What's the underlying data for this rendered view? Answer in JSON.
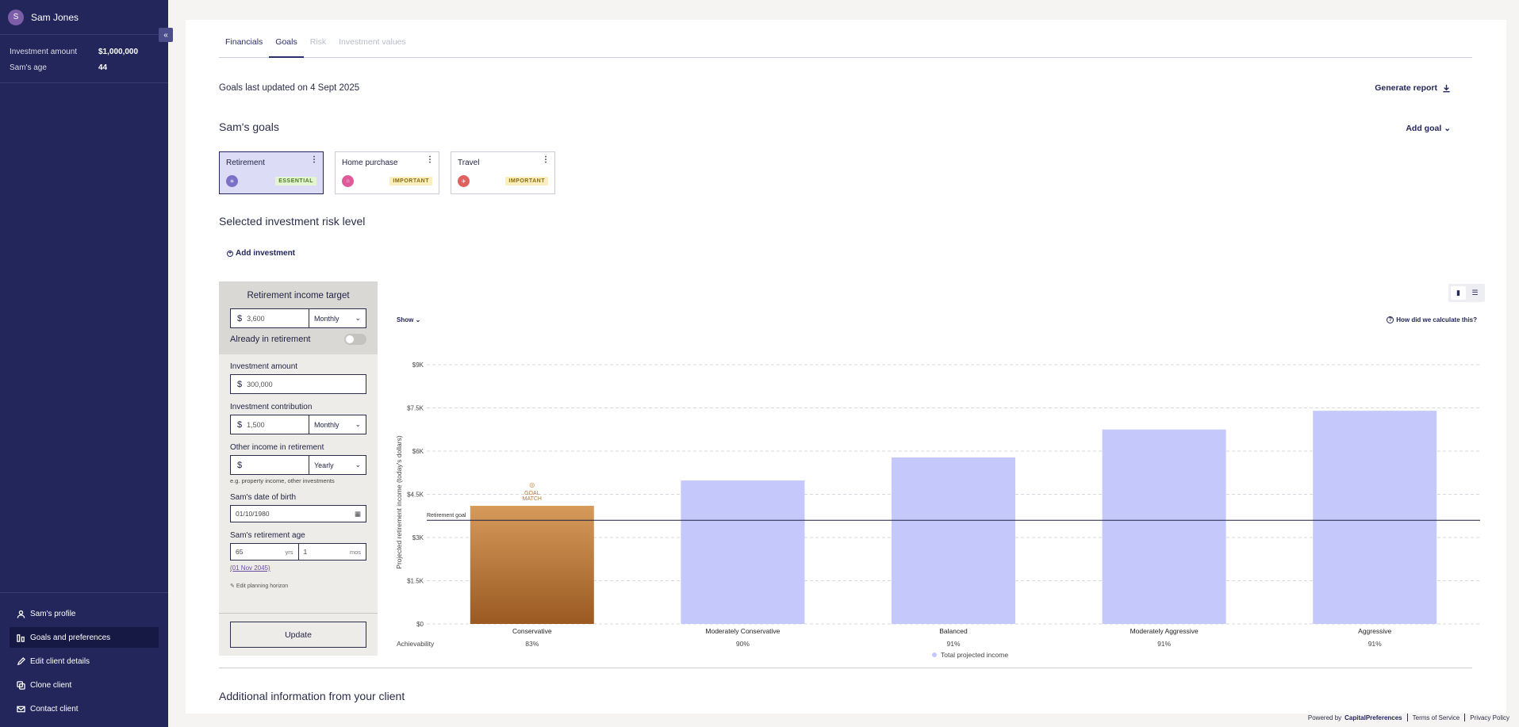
{
  "user": {
    "initial": "S",
    "name": "Sam Jones"
  },
  "sidebar": {
    "collapse_icon": "«",
    "info": [
      {
        "label": "Investment amount",
        "value": "$1,000,000"
      },
      {
        "label": "Sam's age",
        "value": "44"
      }
    ],
    "nav": [
      {
        "label": "Sam's profile",
        "icon": "person-icon",
        "active": false
      },
      {
        "label": "Goals and preferences",
        "icon": "chart-icon",
        "active": true
      },
      {
        "label": "Edit client details",
        "icon": "pencil-icon",
        "active": false
      },
      {
        "label": "Clone client",
        "icon": "copy-icon",
        "active": false
      },
      {
        "label": "Contact client",
        "icon": "mail-icon",
        "active": false
      }
    ]
  },
  "tabs": [
    {
      "label": "Financials",
      "state": "normal"
    },
    {
      "label": "Goals",
      "state": "active"
    },
    {
      "label": "Risk",
      "state": "disabled"
    },
    {
      "label": "Investment values",
      "state": "disabled"
    }
  ],
  "header": {
    "updated": "Goals last updated on 4 Sept 2025",
    "generate_report": "Generate report",
    "goals_title": "Sam's goals",
    "add_goal": "Add goal",
    "risk_title": "Selected investment risk level",
    "add_investment": "Add investment"
  },
  "goals": [
    {
      "name": "Retirement",
      "badge": "ESSENTIAL",
      "badge_type": "essential",
      "icon_color": "#7b6fc8",
      "selected": true
    },
    {
      "name": "Home purchase",
      "badge": "IMPORTANT",
      "badge_type": "important",
      "icon_color": "#e05a9a",
      "selected": false
    },
    {
      "name": "Travel",
      "badge": "IMPORTANT",
      "badge_type": "important",
      "icon_color": "#e06060",
      "selected": false
    }
  ],
  "form": {
    "heading": "Retirement income target",
    "currency": "$",
    "target_value": "3,600",
    "target_freq": "Monthly",
    "already_retired_label": "Already in retirement",
    "investment_amount_label": "Investment amount",
    "investment_amount": "300,000",
    "contribution_label": "Investment contribution",
    "contribution": "1,500",
    "contribution_freq": "Monthly",
    "other_income_label": "Other income in retirement",
    "other_income": "",
    "other_income_freq": "Yearly",
    "other_income_hint": "e.g. property income, other investments",
    "dob_label": "Sam's date of birth",
    "dob": "01/10/1980",
    "ret_age_label": "Sam's retirement age",
    "ret_years": "65",
    "ret_years_unit": "yrs",
    "ret_months": "1",
    "ret_months_unit": "mos",
    "ret_date": "(01 Nov 2045)",
    "edit_horizon": "Edit planning horizon",
    "update": "Update"
  },
  "chart_controls": {
    "show": "Show",
    "how_calc": "How did we calculate this?"
  },
  "chart_data": {
    "type": "bar",
    "ylabel": "Projected retirement income (today's dollars)",
    "yticks": [
      "$0",
      "$1.5K",
      "$3K",
      "$4.5K",
      "$6K",
      "$7.5K",
      "$9K"
    ],
    "ylim": [
      0,
      9000
    ],
    "categories": [
      "Conservative",
      "Moderately Conservative",
      "Balanced",
      "Moderately Aggressive",
      "Aggressive"
    ],
    "values": [
      4100,
      4980,
      5780,
      6750,
      7400
    ],
    "achievability_label": "Achievability",
    "achievability": [
      "83%",
      "90%",
      "91%",
      "91%",
      "91%"
    ],
    "goal_line": {
      "value": 3600,
      "label": "Retirement goal"
    },
    "goal_match_index": 0,
    "goal_match_label": "GOAL MATCH",
    "legend": "Total projected income",
    "colors": {
      "bar": "#c5c8fb",
      "match_top": "#d69a5a",
      "match_bottom": "#9a5a22",
      "legend_dot": "#c5c8fb"
    }
  },
  "footer": {
    "powered_by": "Powered by",
    "brand": "CapitalPreferences",
    "terms": "Terms of Service",
    "privacy": "Privacy Policy"
  },
  "additional_info_title": "Additional information from your client"
}
